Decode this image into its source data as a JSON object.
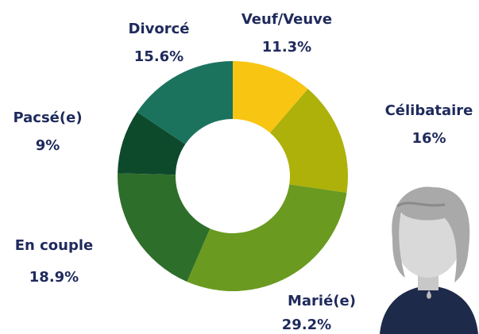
{
  "chart_data": {
    "type": "donut",
    "categories": [
      "Veuf/Veuve",
      "Célibataire",
      "Marié(e)",
      "En couple",
      "Pacsé(e)",
      "Divorcé"
    ],
    "values": [
      11.3,
      16,
      29.2,
      18.9,
      9,
      15.6
    ],
    "value_labels": [
      "11.3%",
      "16%",
      "29.2%",
      "18.9%",
      "9%",
      "15.6%"
    ],
    "colors": [
      "#f9c513",
      "#adb10a",
      "#6a9a1f",
      "#2e6e2b",
      "#0c4a2b",
      "#1b735e"
    ]
  }
}
